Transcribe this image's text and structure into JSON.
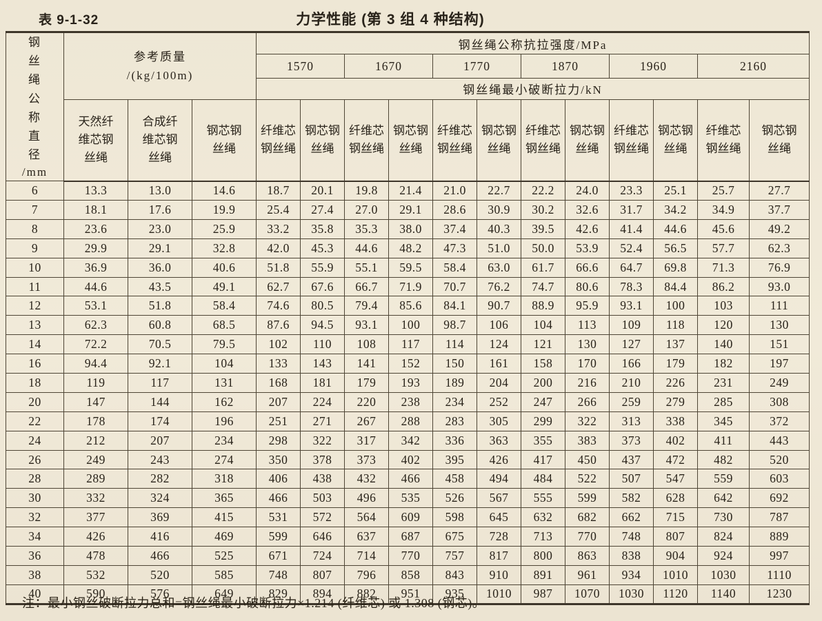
{
  "page": {
    "table_number": "表 9-1-32",
    "title": "力学性能 (第 3 组 4 种结构)",
    "footnote": "注：最小钢丝破断拉力总和=钢丝绳最小破断拉力×1.214 (纤维芯) 或 1.308 (钢芯)。"
  },
  "table": {
    "diameter_label": "钢丝绳公称直径",
    "diameter_unit": "/mm",
    "ref_mass_label": "参考质量",
    "ref_mass_unit": "/(kg/100m)",
    "strength_header": "钢丝绳公称抗拉强度/MPa",
    "breaking_header": "钢丝绳最小破断拉力/kN",
    "mass_subheads": [
      "天然纤维芯钢丝绳",
      "合成纤维芯钢丝绳",
      "钢芯钢丝绳"
    ],
    "strength_grades": [
      "1570",
      "1670",
      "1770",
      "1870",
      "1960",
      "2160"
    ],
    "core_subheads": [
      "纤维芯钢丝绳",
      "钢芯钢丝绳"
    ],
    "rows": [
      [
        "6",
        "13.3",
        "13.0",
        "14.6",
        "18.7",
        "20.1",
        "19.8",
        "21.4",
        "21.0",
        "22.7",
        "22.2",
        "24.0",
        "23.3",
        "25.1",
        "25.7",
        "27.7"
      ],
      [
        "7",
        "18.1",
        "17.6",
        "19.9",
        "25.4",
        "27.4",
        "27.0",
        "29.1",
        "28.6",
        "30.9",
        "30.2",
        "32.6",
        "31.7",
        "34.2",
        "34.9",
        "37.7"
      ],
      [
        "8",
        "23.6",
        "23.0",
        "25.9",
        "33.2",
        "35.8",
        "35.3",
        "38.0",
        "37.4",
        "40.3",
        "39.5",
        "42.6",
        "41.4",
        "44.6",
        "45.6",
        "49.2"
      ],
      [
        "9",
        "29.9",
        "29.1",
        "32.8",
        "42.0",
        "45.3",
        "44.6",
        "48.2",
        "47.3",
        "51.0",
        "50.0",
        "53.9",
        "52.4",
        "56.5",
        "57.7",
        "62.3"
      ],
      [
        "10",
        "36.9",
        "36.0",
        "40.6",
        "51.8",
        "55.9",
        "55.1",
        "59.5",
        "58.4",
        "63.0",
        "61.7",
        "66.6",
        "64.7",
        "69.8",
        "71.3",
        "76.9"
      ],
      [
        "11",
        "44.6",
        "43.5",
        "49.1",
        "62.7",
        "67.6",
        "66.7",
        "71.9",
        "70.7",
        "76.2",
        "74.7",
        "80.6",
        "78.3",
        "84.4",
        "86.2",
        "93.0"
      ],
      [
        "12",
        "53.1",
        "51.8",
        "58.4",
        "74.6",
        "80.5",
        "79.4",
        "85.6",
        "84.1",
        "90.7",
        "88.9",
        "95.9",
        "93.1",
        "100",
        "103",
        "111"
      ],
      [
        "13",
        "62.3",
        "60.8",
        "68.5",
        "87.6",
        "94.5",
        "93.1",
        "100",
        "98.7",
        "106",
        "104",
        "113",
        "109",
        "118",
        "120",
        "130"
      ],
      [
        "14",
        "72.2",
        "70.5",
        "79.5",
        "102",
        "110",
        "108",
        "117",
        "114",
        "124",
        "121",
        "130",
        "127",
        "137",
        "140",
        "151"
      ],
      [
        "16",
        "94.4",
        "92.1",
        "104",
        "133",
        "143",
        "141",
        "152",
        "150",
        "161",
        "158",
        "170",
        "166",
        "179",
        "182",
        "197"
      ],
      [
        "18",
        "119",
        "117",
        "131",
        "168",
        "181",
        "179",
        "193",
        "189",
        "204",
        "200",
        "216",
        "210",
        "226",
        "231",
        "249"
      ],
      [
        "20",
        "147",
        "144",
        "162",
        "207",
        "224",
        "220",
        "238",
        "234",
        "252",
        "247",
        "266",
        "259",
        "279",
        "285",
        "308"
      ],
      [
        "22",
        "178",
        "174",
        "196",
        "251",
        "271",
        "267",
        "288",
        "283",
        "305",
        "299",
        "322",
        "313",
        "338",
        "345",
        "372"
      ],
      [
        "24",
        "212",
        "207",
        "234",
        "298",
        "322",
        "317",
        "342",
        "336",
        "363",
        "355",
        "383",
        "373",
        "402",
        "411",
        "443"
      ],
      [
        "26",
        "249",
        "243",
        "274",
        "350",
        "378",
        "373",
        "402",
        "395",
        "426",
        "417",
        "450",
        "437",
        "472",
        "482",
        "520"
      ],
      [
        "28",
        "289",
        "282",
        "318",
        "406",
        "438",
        "432",
        "466",
        "458",
        "494",
        "484",
        "522",
        "507",
        "547",
        "559",
        "603"
      ],
      [
        "30",
        "332",
        "324",
        "365",
        "466",
        "503",
        "496",
        "535",
        "526",
        "567",
        "555",
        "599",
        "582",
        "628",
        "642",
        "692"
      ],
      [
        "32",
        "377",
        "369",
        "415",
        "531",
        "572",
        "564",
        "609",
        "598",
        "645",
        "632",
        "682",
        "662",
        "715",
        "730",
        "787"
      ],
      [
        "34",
        "426",
        "416",
        "469",
        "599",
        "646",
        "637",
        "687",
        "675",
        "728",
        "713",
        "770",
        "748",
        "807",
        "824",
        "889"
      ],
      [
        "36",
        "478",
        "466",
        "525",
        "671",
        "724",
        "714",
        "770",
        "757",
        "817",
        "800",
        "863",
        "838",
        "904",
        "924",
        "997"
      ],
      [
        "38",
        "532",
        "520",
        "585",
        "748",
        "807",
        "796",
        "858",
        "843",
        "910",
        "891",
        "961",
        "934",
        "1010",
        "1030",
        "1110"
      ],
      [
        "40",
        "590",
        "576",
        "649",
        "829",
        "894",
        "882",
        "951",
        "935",
        "1010",
        "987",
        "1070",
        "1030",
        "1120",
        "1140",
        "1230"
      ]
    ]
  }
}
